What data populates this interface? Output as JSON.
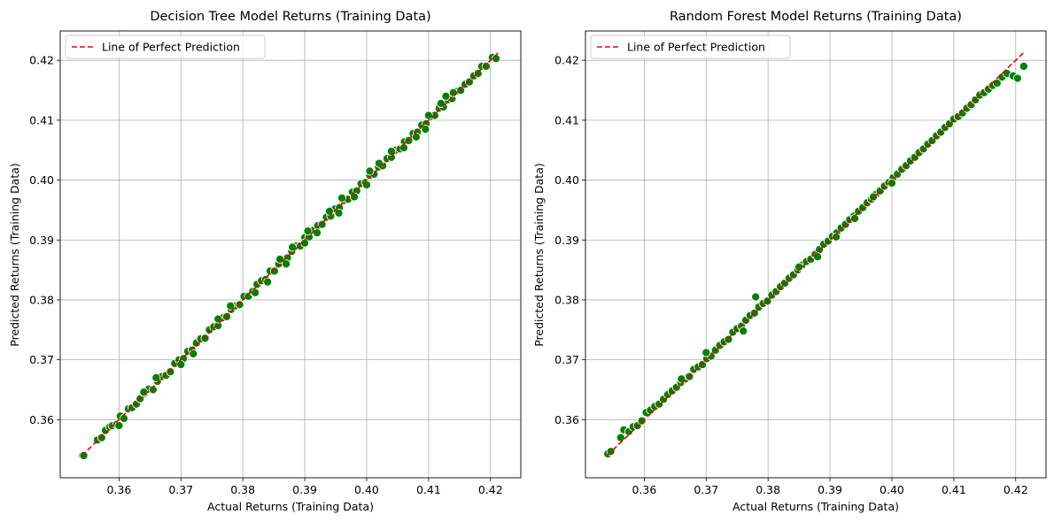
{
  "chart_data": [
    {
      "type": "scatter",
      "title": "Decision Tree Model Returns (Training Data)",
      "xlabel": "Actual Returns (Training Data)",
      "ylabel": "Predicted Returns (Training Data)",
      "xlim": [
        0.3505,
        0.4249
      ],
      "ylim": [
        0.3503,
        0.4249
      ],
      "xticks": [
        "0.36",
        "0.37",
        "0.38",
        "0.39",
        "0.40",
        "0.41",
        "0.42"
      ],
      "yticks": [
        "0.36",
        "0.37",
        "0.38",
        "0.39",
        "0.40",
        "0.41",
        "0.42"
      ],
      "grid": true,
      "legend": {
        "position": "top-left",
        "entries": [
          "Line of Perfect Prediction"
        ]
      },
      "reference_line": {
        "name": "Line of Perfect Prediction",
        "x": [
          0.354,
          0.4215
        ],
        "y": [
          0.354,
          0.4215
        ],
        "color": "#e8000b",
        "style": "dashed"
      },
      "point_color": "#008000",
      "series": [
        {
          "x": [
            0.3541,
            0.3543,
            0.3565,
            0.3572,
            0.3578,
            0.3585,
            0.3589,
            0.3596,
            0.3602,
            0.3608,
            0.3615,
            0.3621,
            0.3628,
            0.3634,
            0.3641,
            0.3648,
            0.3655,
            0.3662,
            0.3669,
            0.3676,
            0.3683,
            0.369,
            0.3697,
            0.3704,
            0.3711,
            0.3718,
            0.3725,
            0.3732,
            0.3739,
            0.3746,
            0.3753,
            0.376,
            0.3767,
            0.3774,
            0.3781,
            0.3788,
            0.3795,
            0.3802,
            0.3809,
            0.3816,
            0.3823,
            0.383,
            0.3837,
            0.3844,
            0.3851,
            0.3858,
            0.3865,
            0.3872,
            0.3879,
            0.3886,
            0.3893,
            0.39,
            0.3907,
            0.3914,
            0.3921,
            0.3928,
            0.3935,
            0.3942,
            0.3949,
            0.3956,
            0.3963,
            0.397,
            0.3977,
            0.3984,
            0.3991,
            0.3998,
            0.4005,
            0.4012,
            0.4019,
            0.4026,
            0.4033,
            0.404,
            0.4047,
            0.4054,
            0.4061,
            0.4068,
            0.4075,
            0.4082,
            0.4089,
            0.4096,
            0.4103,
            0.411,
            0.4117,
            0.4124,
            0.4131,
            0.4138,
            0.4145,
            0.4152,
            0.4159,
            0.4166,
            0.4173,
            0.418,
            0.4186,
            0.4193,
            0.4203,
            0.4209,
            0.36,
            0.366,
            0.372,
            0.378,
            0.384,
            0.388,
            0.392,
            0.396,
            0.4,
            0.404,
            0.408,
            0.412,
            0.364,
            0.37,
            0.376,
            0.382,
            0.386,
            0.39,
            0.394,
            0.398,
            0.402,
            0.406,
            0.41,
            0.414,
            0.387,
            0.3905,
            0.3955,
            0.4005,
            0.4095,
            0.4128
          ],
          "y": [
            0.354,
            0.354,
            0.3566,
            0.357,
            0.3582,
            0.3588,
            0.359,
            0.3592,
            0.3606,
            0.3602,
            0.3618,
            0.362,
            0.3626,
            0.3635,
            0.3644,
            0.3651,
            0.365,
            0.3664,
            0.3672,
            0.3674,
            0.368,
            0.3694,
            0.37,
            0.3702,
            0.3714,
            0.3716,
            0.3728,
            0.3735,
            0.3736,
            0.375,
            0.3755,
            0.3757,
            0.377,
            0.3772,
            0.3784,
            0.379,
            0.3792,
            0.3806,
            0.3806,
            0.3814,
            0.3826,
            0.3832,
            0.3834,
            0.3848,
            0.3848,
            0.386,
            0.3868,
            0.387,
            0.3881,
            0.389,
            0.389,
            0.3904,
            0.3905,
            0.3916,
            0.3924,
            0.3926,
            0.3938,
            0.394,
            0.3952,
            0.3954,
            0.3966,
            0.3968,
            0.398,
            0.3982,
            0.3994,
            0.3996,
            0.4008,
            0.401,
            0.4022,
            0.4024,
            0.4036,
            0.4038,
            0.405,
            0.4052,
            0.4064,
            0.4066,
            0.4078,
            0.408,
            0.4092,
            0.4094,
            0.4106,
            0.4108,
            0.412,
            0.4122,
            0.4134,
            0.4136,
            0.4148,
            0.415,
            0.416,
            0.4164,
            0.4174,
            0.4178,
            0.419,
            0.419,
            0.4205,
            0.4203,
            0.359,
            0.367,
            0.371,
            0.379,
            0.383,
            0.3888,
            0.3912,
            0.397,
            0.3992,
            0.4048,
            0.4072,
            0.4128,
            0.3646,
            0.3692,
            0.3768,
            0.3812,
            0.3868,
            0.3895,
            0.3948,
            0.3972,
            0.4028,
            0.4054,
            0.4108,
            0.4146,
            0.386,
            0.3915,
            0.3945,
            0.4015,
            0.4085,
            0.414
          ]
        }
      ]
    },
    {
      "type": "scatter",
      "title": "Random Forest Model Returns (Training Data)",
      "xlabel": "Actual Returns (Training Data)",
      "ylabel": "Predicted Returns (Training Data)",
      "xlim": [
        0.3505,
        0.4249
      ],
      "ylim": [
        0.3503,
        0.4249
      ],
      "xticks": [
        "0.36",
        "0.37",
        "0.38",
        "0.39",
        "0.40",
        "0.41",
        "0.42"
      ],
      "yticks": [
        "0.36",
        "0.37",
        "0.38",
        "0.39",
        "0.40",
        "0.41",
        "0.42"
      ],
      "grid": true,
      "legend": {
        "position": "top-left",
        "entries": [
          "Line of Perfect Prediction"
        ]
      },
      "reference_line": {
        "name": "Line of Perfect Prediction",
        "x": [
          0.354,
          0.4215
        ],
        "y": [
          0.354,
          0.4215
        ],
        "color": "#e8000b",
        "style": "dashed"
      },
      "point_color": "#008000",
      "series": [
        {
          "x": [
            0.3541,
            0.3546,
            0.3562,
            0.3567,
            0.3575,
            0.3582,
            0.3589,
            0.3596,
            0.3603,
            0.361,
            0.3617,
            0.3624,
            0.3631,
            0.3638,
            0.3645,
            0.3652,
            0.3659,
            0.3666,
            0.3673,
            0.368,
            0.3687,
            0.3694,
            0.3701,
            0.3708,
            0.3715,
            0.3722,
            0.3729,
            0.3736,
            0.3743,
            0.375,
            0.3757,
            0.3764,
            0.3771,
            0.3778,
            0.3785,
            0.3792,
            0.3799,
            0.3806,
            0.3813,
            0.382,
            0.3827,
            0.3834,
            0.3841,
            0.3848,
            0.3855,
            0.3862,
            0.3869,
            0.3876,
            0.3883,
            0.389,
            0.3897,
            0.3904,
            0.3911,
            0.3918,
            0.3925,
            0.3932,
            0.3939,
            0.3946,
            0.3953,
            0.396,
            0.3967,
            0.3974,
            0.3981,
            0.3988,
            0.3995,
            0.4002,
            0.4009,
            0.4016,
            0.4023,
            0.403,
            0.4037,
            0.4044,
            0.4051,
            0.4058,
            0.4065,
            0.4072,
            0.4079,
            0.4086,
            0.4093,
            0.41,
            0.4107,
            0.4114,
            0.4121,
            0.4128,
            0.4135,
            0.4142,
            0.4149,
            0.4156,
            0.4163,
            0.417,
            0.4178,
            0.4186,
            0.4196,
            0.4203,
            0.4213,
            0.385,
            0.388,
            0.391,
            0.394,
            0.378,
            0.376,
            0.397,
            0.4,
            0.366,
            0.37
          ],
          "y": [
            0.3543,
            0.3547,
            0.357,
            0.3583,
            0.358,
            0.3588,
            0.359,
            0.3598,
            0.3612,
            0.3616,
            0.3622,
            0.3626,
            0.3634,
            0.3642,
            0.3648,
            0.3654,
            0.3662,
            0.3668,
            0.3672,
            0.3684,
            0.3688,
            0.3692,
            0.3702,
            0.3706,
            0.3716,
            0.3724,
            0.373,
            0.3734,
            0.3746,
            0.3752,
            0.3756,
            0.3766,
            0.3774,
            0.3778,
            0.3788,
            0.3794,
            0.3798,
            0.3808,
            0.3814,
            0.3822,
            0.3828,
            0.3836,
            0.3842,
            0.385,
            0.3858,
            0.3864,
            0.3868,
            0.3876,
            0.3884,
            0.3893,
            0.3898,
            0.3906,
            0.3912,
            0.392,
            0.3926,
            0.3934,
            0.394,
            0.3948,
            0.3954,
            0.3962,
            0.3968,
            0.3976,
            0.3982,
            0.399,
            0.3996,
            0.4004,
            0.401,
            0.4018,
            0.4024,
            0.4032,
            0.4038,
            0.4046,
            0.4052,
            0.406,
            0.4066,
            0.4074,
            0.408,
            0.4088,
            0.4094,
            0.4102,
            0.4106,
            0.4112,
            0.412,
            0.4126,
            0.4134,
            0.4142,
            0.4146,
            0.4152,
            0.4158,
            0.4162,
            0.4172,
            0.4178,
            0.4174,
            0.417,
            0.419,
            0.3855,
            0.3872,
            0.3905,
            0.3936,
            0.3805,
            0.3748,
            0.3972,
            0.3995,
            0.3668,
            0.3712
          ]
        }
      ]
    }
  ]
}
